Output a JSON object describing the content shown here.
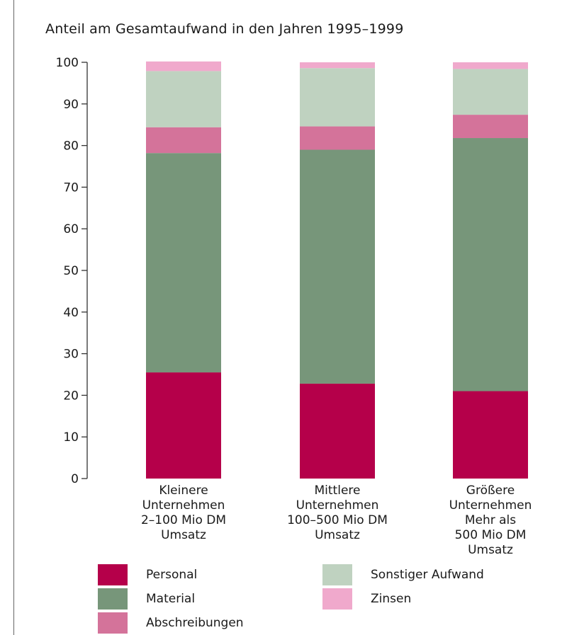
{
  "chart_data": {
    "type": "bar",
    "stacked": true,
    "title": "Anteil am Gesamtaufwand in den Jahren 1995–1999",
    "xlabel": "",
    "ylabel": "",
    "ylim": [
      0,
      100
    ],
    "yticks": [
      "0",
      "10",
      "20",
      "30",
      "40",
      "50",
      "60",
      "70",
      "80",
      "90",
      "100"
    ],
    "grid": false,
    "categories": [
      [
        "Kleinere",
        "Unternehmen",
        "2–100 Mio DM",
        "Umsatz"
      ],
      [
        "Mittlere",
        "Unternehmen",
        "100–500 Mio DM",
        "Umsatz"
      ],
      [
        "Größere",
        "Unternehmen",
        "Mehr als",
        "500 Mio DM",
        "Umsatz"
      ]
    ],
    "series": [
      {
        "name": "Personal",
        "color": "#b5004a",
        "values": [
          25.5,
          22.8,
          21.0
        ]
      },
      {
        "name": "Material",
        "color": "#77967a",
        "values": [
          52.7,
          56.2,
          60.8
        ]
      },
      {
        "name": "Abschreibungen",
        "color": "#d4739a",
        "values": [
          6.2,
          5.6,
          5.6
        ]
      },
      {
        "name": "Sonstiger Aufwand",
        "color": "#bfd2c0",
        "values": [
          13.5,
          14.0,
          11.0
        ]
      },
      {
        "name": "Zinsen",
        "color": "#f0a9cc",
        "values": [
          2.3,
          1.4,
          1.6
        ]
      }
    ],
    "legend_position": "bottom"
  }
}
